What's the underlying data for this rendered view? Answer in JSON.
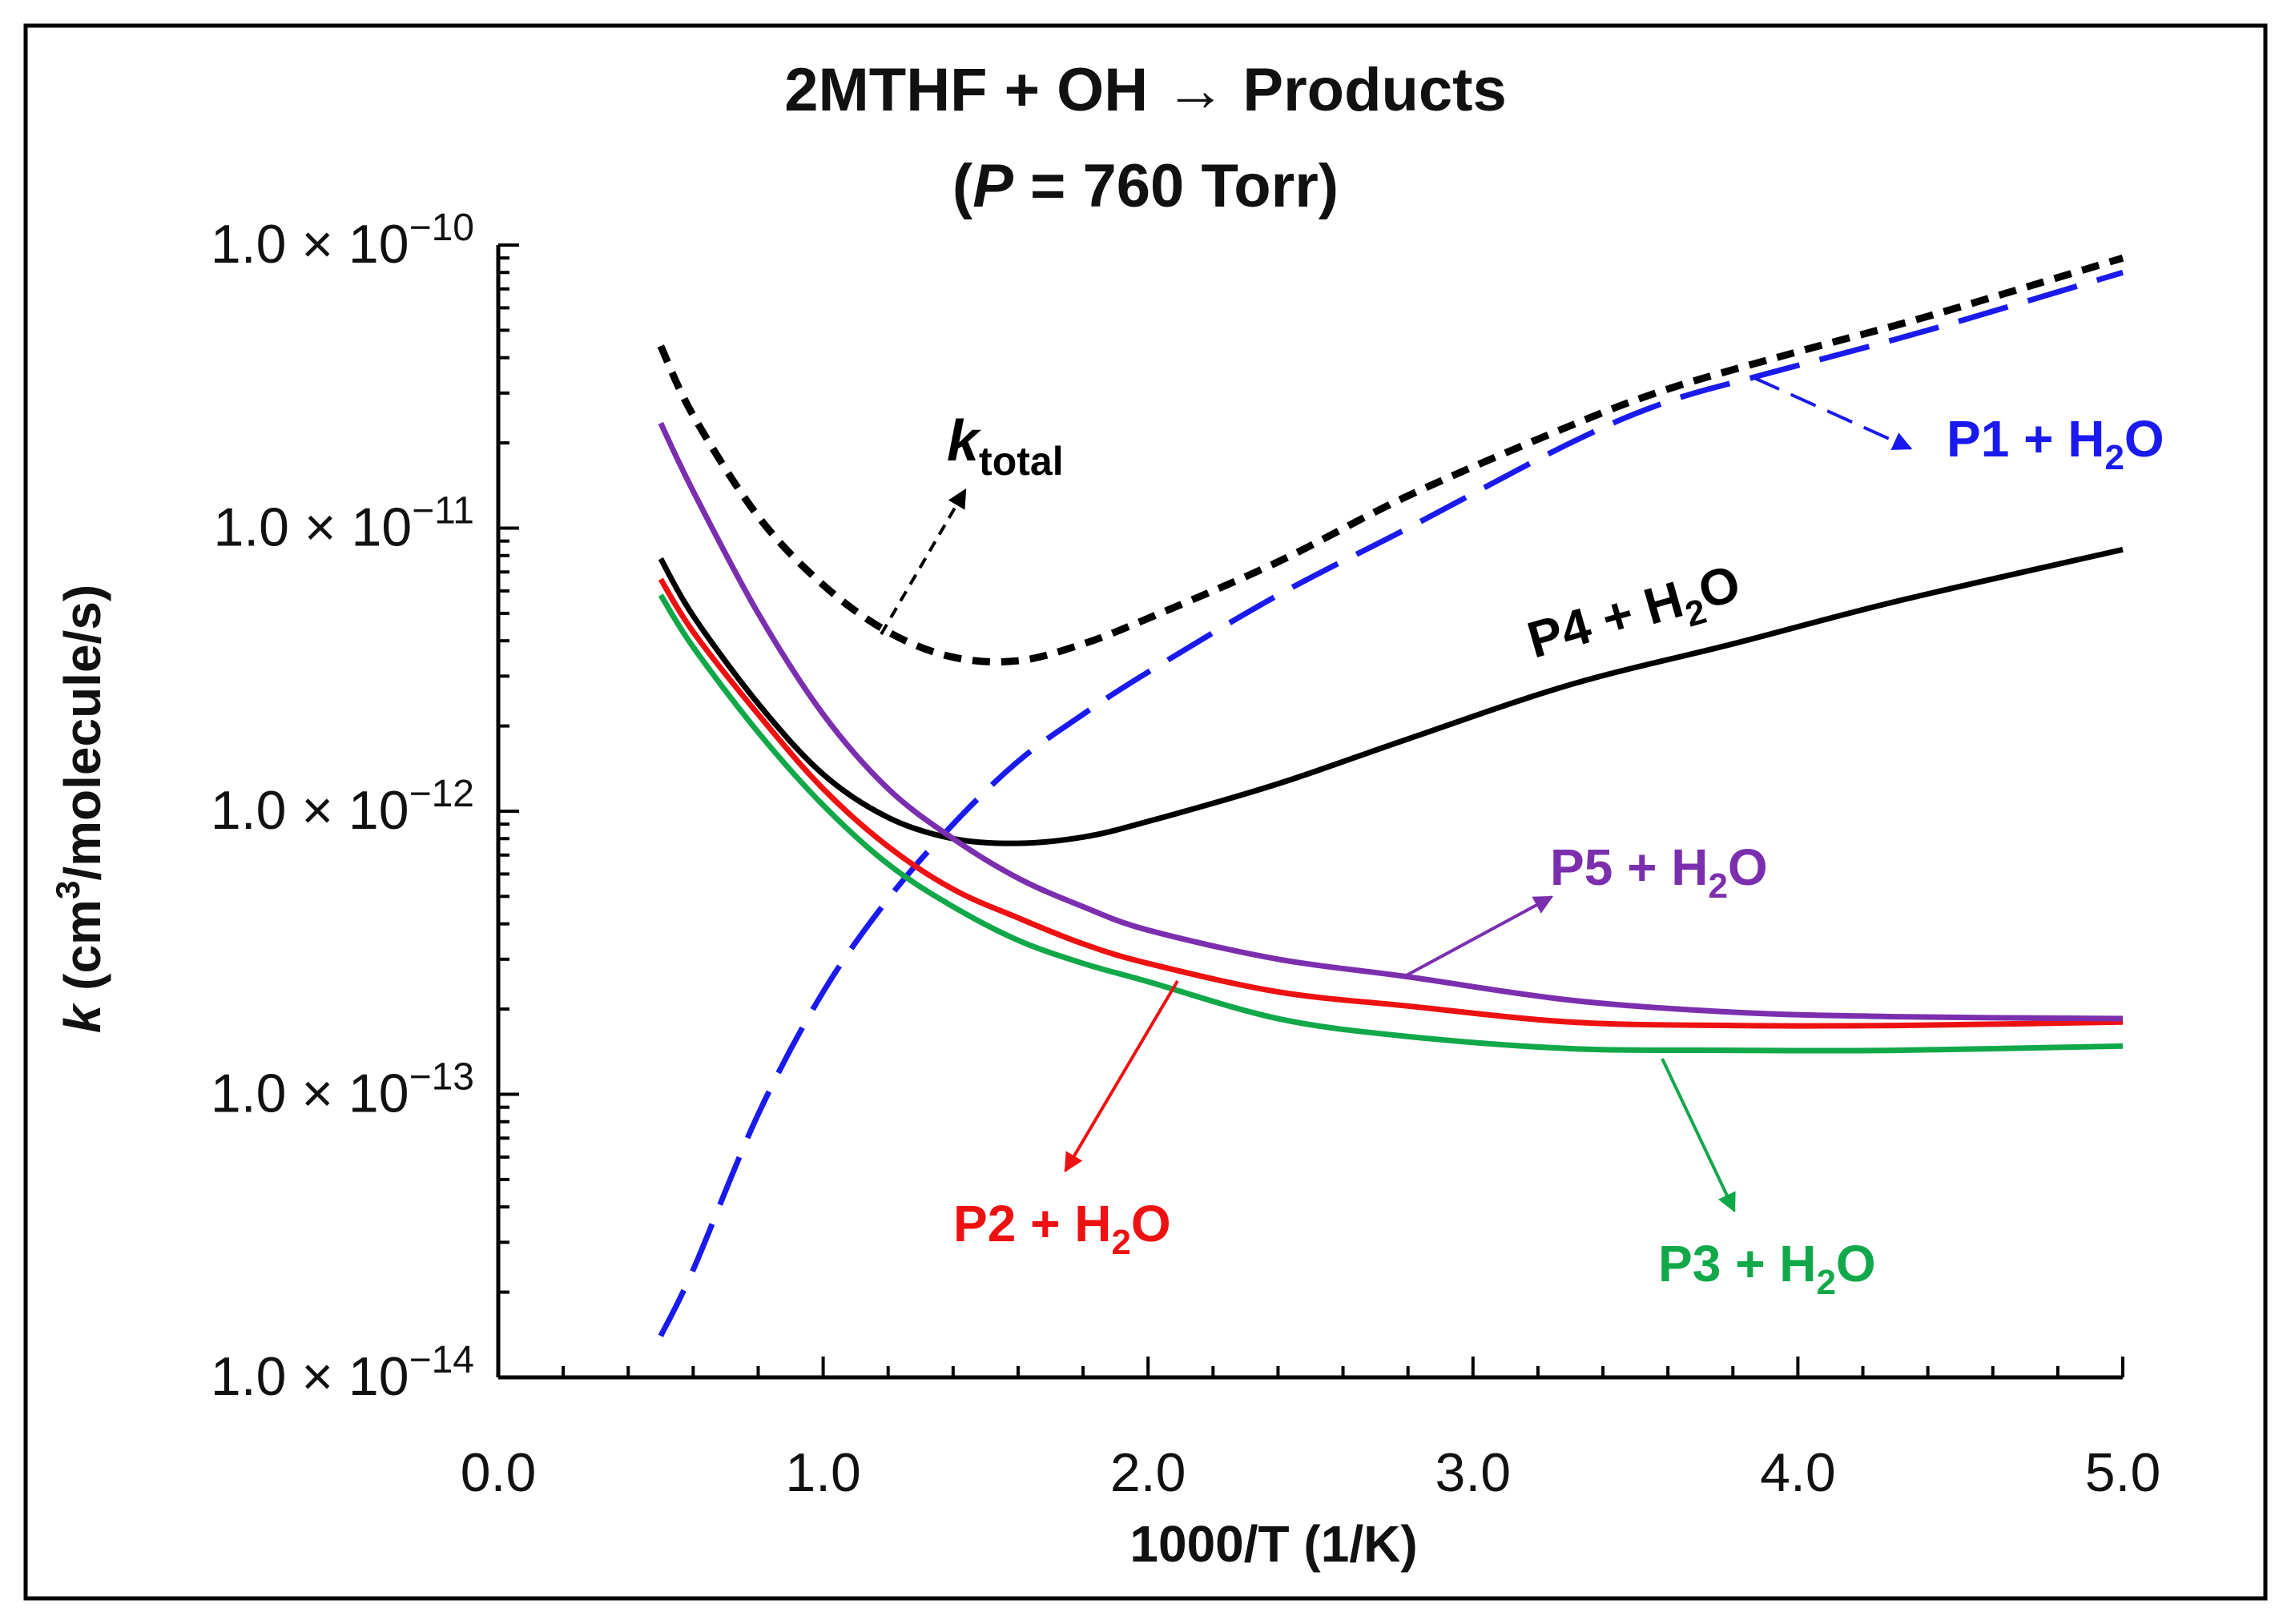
{
  "chart_data": {
    "type": "line",
    "title_line1": "2MTHF + OH → Products",
    "title_line2_prefix": "(",
    "title_line2_var": "P",
    "title_line2_suffix": " = 760 Torr)",
    "xlabel": "1000/T (1/K)",
    "ylabel_var": "k",
    "ylabel_pre": " (cm",
    "ylabel_sup": "3",
    "ylabel_post": "/molecule/s)",
    "xlim": [
      0,
      5
    ],
    "ylim_log10": [
      -14,
      -10
    ],
    "y_scale": "log",
    "grid": false,
    "x_ticks": [
      "0.0",
      "1.0",
      "2.0",
      "3.0",
      "4.0",
      "5.0"
    ],
    "y_ticks": [
      {
        "mantissa": "1.0 × 10",
        "exp": "−10"
      },
      {
        "mantissa": "1.0 × 10",
        "exp": "−11"
      },
      {
        "mantissa": "1.0 × 10",
        "exp": "−12"
      },
      {
        "mantissa": "1.0 × 10",
        "exp": "−13"
      },
      {
        "mantissa": "1.0 × 10",
        "exp": "−14"
      }
    ],
    "series": [
      {
        "label_main": "k",
        "label_sub": "total",
        "label_post": "",
        "color": "#000000",
        "dash": "short",
        "x": [
          0.5,
          0.6,
          0.8,
          1.0,
          1.2,
          1.4,
          1.6,
          1.8,
          2.0,
          2.4,
          2.8,
          3.3,
          3.6,
          4.0,
          4.4,
          5.0
        ],
        "y": [
          4.4e-11,
          2.5e-11,
          1.1e-11,
          6.3e-12,
          4.3e-12,
          3.5e-12,
          3.4e-12,
          3.9e-12,
          4.8e-12,
          7.6e-12,
          1.3e-11,
          2.3e-11,
          3.1e-11,
          4.2e-11,
          5.6e-11,
          9e-11
        ]
      },
      {
        "label_main": "P1 + H",
        "label_sub": "2",
        "label_post": "O",
        "color": "#1a1aee",
        "dash": "long",
        "x": [
          0.5,
          0.6,
          0.8,
          1.0,
          1.2,
          1.4,
          1.6,
          1.8,
          2.0,
          2.4,
          2.8,
          3.3,
          3.6,
          3.9,
          4.4,
          5.0
        ],
        "y": [
          1.4e-14,
          2.4e-14,
          8.5e-14,
          2.3e-13,
          4.9e-13,
          9e-13,
          1.5e-12,
          2.2e-12,
          3.1e-12,
          5.8e-12,
          1e-11,
          2e-11,
          2.8e-11,
          3.5e-11,
          5e-11,
          8e-11
        ]
      },
      {
        "label_main": "P2 + H",
        "label_sub": "2",
        "label_post": "O",
        "color": "#ee1111",
        "dash": "solid",
        "x": [
          0.5,
          0.6,
          0.8,
          1.0,
          1.2,
          1.4,
          1.6,
          1.8,
          2.0,
          2.4,
          2.8,
          3.3,
          3.8,
          4.3,
          5.0
        ],
        "y": [
          6.6e-12,
          4.3e-12,
          2.2e-12,
          1.2e-12,
          7.5e-13,
          5.3e-13,
          4.2e-13,
          3.4e-13,
          2.9e-13,
          2.3e-13,
          2.05e-13,
          1.8e-13,
          1.75e-13,
          1.75e-13,
          1.8e-13
        ]
      },
      {
        "label_main": "P3 + H",
        "label_sub": "2",
        "label_post": "O",
        "color": "#11a84a",
        "dash": "solid",
        "x": [
          0.5,
          0.6,
          0.8,
          1.0,
          1.2,
          1.4,
          1.6,
          1.8,
          2.0,
          2.4,
          2.8,
          3.3,
          3.8,
          4.3,
          5.0
        ],
        "y": [
          5.8e-12,
          3.8e-12,
          1.9e-12,
          1.05e-12,
          6.5e-13,
          4.6e-13,
          3.5e-13,
          2.9e-13,
          2.5e-13,
          1.85e-13,
          1.6e-13,
          1.45e-13,
          1.43e-13,
          1.43e-13,
          1.48e-13
        ]
      },
      {
        "label_main": "P4 + H",
        "label_sub": "2",
        "label_post": "O",
        "color": "#000000",
        "dash": "solid",
        "x": [
          0.5,
          0.6,
          0.8,
          1.0,
          1.2,
          1.4,
          1.6,
          1.8,
          2.0,
          2.4,
          2.8,
          3.3,
          3.8,
          4.3,
          5.0
        ],
        "y": [
          7.8e-12,
          4.9e-12,
          2.4e-12,
          1.35e-12,
          9.5e-13,
          8e-13,
          7.7e-13,
          8.1e-13,
          9.2e-13,
          1.25e-12,
          1.8e-12,
          2.8e-12,
          3.9e-12,
          5.5e-12,
          8.4e-12
        ]
      },
      {
        "label_main": "P5 + H",
        "label_sub": "2",
        "label_post": "O",
        "color": "#7b2fae",
        "dash": "solid",
        "x": [
          0.5,
          0.6,
          0.8,
          1.0,
          1.2,
          1.4,
          1.6,
          1.8,
          2.0,
          2.4,
          2.8,
          3.3,
          3.8,
          4.3,
          5.0
        ],
        "y": [
          2.35e-11,
          1.35e-11,
          5e-12,
          2.2e-12,
          1.2e-12,
          8e-13,
          5.8e-13,
          4.6e-13,
          3.8e-13,
          3e-13,
          2.6e-13,
          2.15e-13,
          1.95e-13,
          1.88e-13,
          1.85e-13
        ]
      }
    ]
  }
}
